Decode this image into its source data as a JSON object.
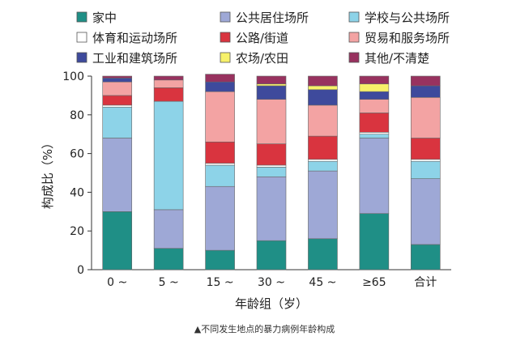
{
  "chart_data": {
    "type": "bar",
    "stacked": true,
    "categories": [
      "0 ~",
      "5 ~",
      "15 ~",
      "30 ~",
      "45 ~",
      "≥65",
      "合计"
    ],
    "xlabel": "年龄组（岁）",
    "ylabel": "构成比（%）",
    "ylim": [
      0,
      100
    ],
    "yticks": [
      0,
      20,
      40,
      60,
      80,
      100
    ],
    "legend_position": "top",
    "series": [
      {
        "name": "家中",
        "color": "#1f8f86",
        "values": [
          30,
          11,
          10,
          15,
          16,
          29,
          13
        ]
      },
      {
        "name": "公共居住场所",
        "color": "#9ea8d6",
        "values": [
          38,
          20,
          33,
          33,
          35,
          39,
          34
        ]
      },
      {
        "name": "学校与公共场所",
        "color": "#8dd3e8",
        "values": [
          16,
          56,
          11,
          5,
          5,
          2,
          9
        ]
      },
      {
        "name": "体育和运动场所",
        "color": "#ffffff",
        "values": [
          1,
          0,
          1,
          1,
          1,
          1,
          1
        ]
      },
      {
        "name": "公路/街道",
        "color": "#d9343f",
        "values": [
          5,
          7,
          11,
          11,
          12,
          10,
          11
        ]
      },
      {
        "name": "贸易和服务场所",
        "color": "#f3a3a3",
        "values": [
          7,
          4,
          26,
          23,
          16,
          7,
          21
        ]
      },
      {
        "name": "工业和建筑场所",
        "color": "#3e4a9c",
        "values": [
          2,
          0,
          5,
          7,
          8,
          4,
          6
        ]
      },
      {
        "name": "农场/农田",
        "color": "#f7f16a",
        "values": [
          0,
          0,
          0,
          1,
          2,
          4,
          0
        ]
      },
      {
        "name": "其他/不清楚",
        "color": "#98325f",
        "values": [
          1,
          2,
          4,
          4,
          5,
          4,
          5
        ]
      }
    ]
  },
  "caption": "▲不同发生地点的暴力病例年龄构成"
}
